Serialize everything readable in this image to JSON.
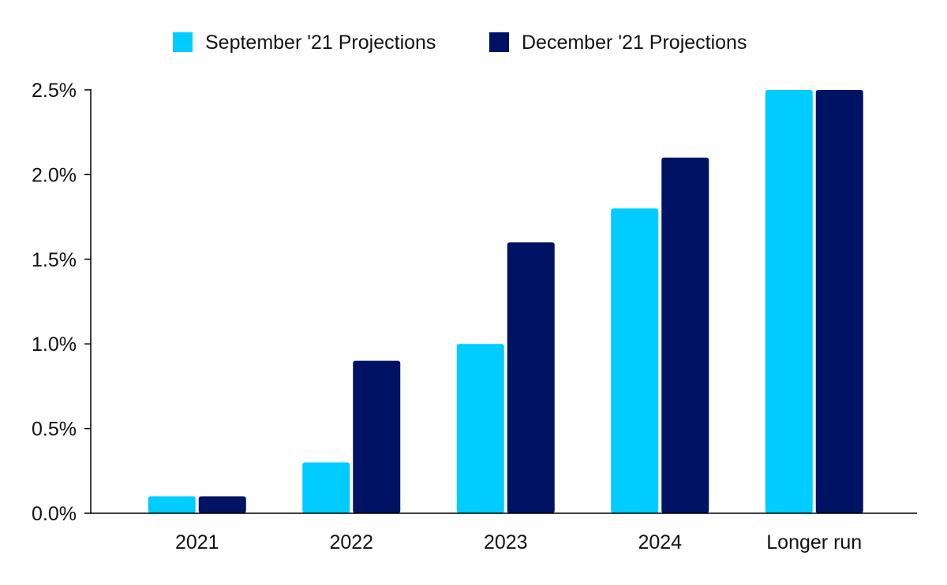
{
  "chart_data": {
    "type": "bar",
    "categories": [
      "2021",
      "2022",
      "2023",
      "2024",
      "Longer run"
    ],
    "series": [
      {
        "name": "September '21 Projections",
        "values": [
          0.1,
          0.3,
          1.0,
          1.8,
          2.5
        ],
        "color": "#00CCFF"
      },
      {
        "name": "December '21 Projections",
        "values": [
          0.1,
          0.9,
          1.6,
          2.1,
          2.5
        ],
        "color": "#001264"
      }
    ],
    "title": "",
    "xlabel": "",
    "ylabel": "",
    "ylim": [
      0,
      2.5
    ],
    "yticks": [
      0,
      0.5,
      1.0,
      1.5,
      2.0,
      2.5
    ],
    "ytick_labels": [
      "0.0%",
      "0.5%",
      "1.0%",
      "1.5%",
      "2.0%",
      "2.5%"
    ],
    "grid": false,
    "legend_position": "top-center"
  }
}
